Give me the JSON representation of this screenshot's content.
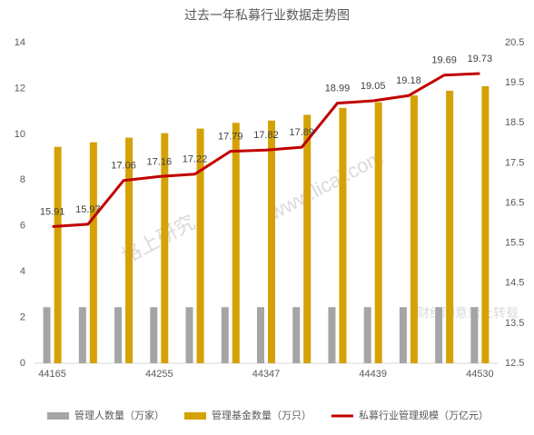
{
  "chart_data": {
    "type": "bar-line",
    "title": "过去一年私募行业数据走势图",
    "categories": [
      "44165",
      null,
      null,
      "44255",
      null,
      null,
      "44347",
      null,
      null,
      "44439",
      null,
      null,
      "44530"
    ],
    "series": [
      {
        "name": "管理人数量（万家）",
        "color": "#a5a5a5",
        "kind": "bar",
        "values": [
          2.45,
          2.45,
          2.45,
          2.45,
          2.45,
          2.45,
          2.45,
          2.45,
          2.45,
          2.45,
          2.45,
          2.45,
          2.45
        ]
      },
      {
        "name": "管理基金数量（万只）",
        "color": "#d4a106",
        "kind": "bar",
        "values": [
          9.45,
          9.65,
          9.85,
          10.05,
          10.25,
          10.5,
          10.6,
          10.85,
          11.15,
          11.4,
          11.7,
          11.9,
          12.1
        ]
      },
      {
        "name": "私募行业管理规模（万亿元）",
        "color": "#c00000",
        "kind": "line",
        "axis": "y2",
        "values": [
          15.91,
          15.97,
          17.06,
          17.16,
          17.22,
          17.79,
          17.82,
          17.89,
          18.99,
          19.05,
          19.18,
          19.69,
          19.73
        ]
      }
    ],
    "ylim": [
      0,
      14
    ],
    "yticks": [
      0,
      2,
      4,
      6,
      8,
      10,
      12,
      14
    ],
    "y2lim": [
      12.5,
      20.5
    ],
    "y2ticks": [
      12.5,
      13.5,
      14.5,
      15.5,
      16.5,
      17.5,
      18.5,
      19.5,
      20.5
    ],
    "annotations": [
      "格上研究",
      "www.licai.com",
      "财经同意禁止转载"
    ]
  }
}
